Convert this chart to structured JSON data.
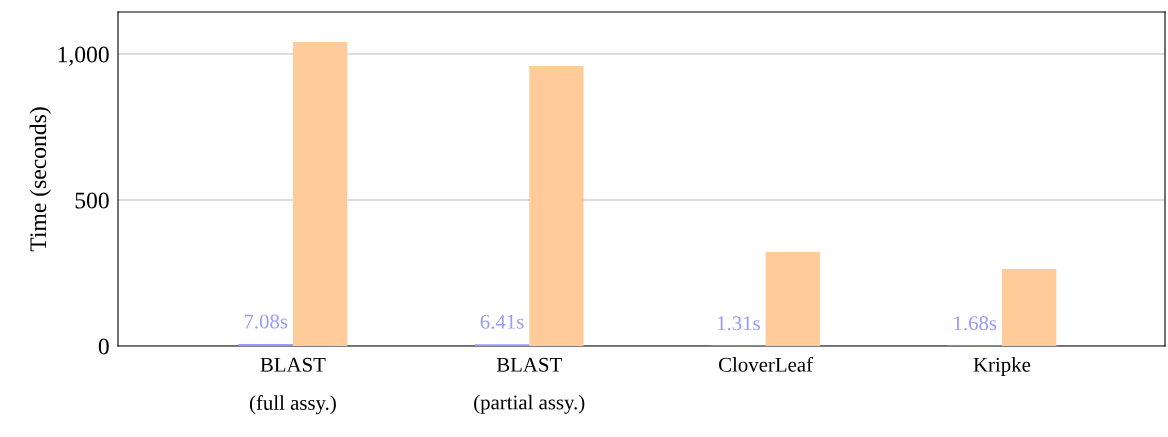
{
  "chart_data": {
    "type": "bar",
    "ylabel": "Time (seconds)",
    "categories": [
      "BLAST\n(full assy.)",
      "BLAST\n(partial assy.)",
      "CloverLeaf",
      "Kripke"
    ],
    "series": [
      {
        "color": "#9999ff",
        "values": [
          7.08,
          6.41,
          1.31,
          1.68
        ],
        "value_labels": [
          "7.08s",
          "6.41s",
          "1.31s",
          "1.68s"
        ]
      },
      {
        "color": "#ffcc99",
        "values": [
          1041,
          959,
          322,
          264
        ]
      }
    ],
    "ylim": [
      0,
      1144
    ],
    "yticks": [
      0,
      500,
      {
        "value": 1000,
        "label": "1,000"
      }
    ],
    "grid": "y"
  }
}
